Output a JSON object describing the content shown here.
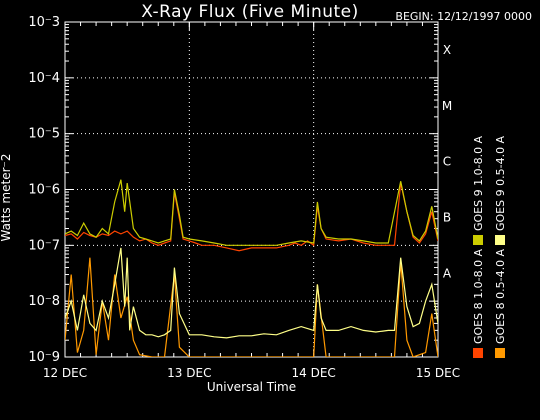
{
  "header": {
    "title": "X-Ray Flux (Five Minute)",
    "begin": "BEGIN: 12/12/1997 0000"
  },
  "chart_data": {
    "type": "line",
    "title": "X-Ray Flux (Five Minute)",
    "xlabel": "Universal Time",
    "ylabel": "Watts meter⁻2",
    "y_scale": "log",
    "ylim": [
      1e-09,
      0.001
    ],
    "xlim": [
      0,
      3
    ],
    "x_ticks": [
      {
        "pos": 0,
        "label": "12 DEC"
      },
      {
        "pos": 1,
        "label": "13 DEC"
      },
      {
        "pos": 2,
        "label": "14 DEC"
      },
      {
        "pos": 3,
        "label": "15 DEC"
      }
    ],
    "y_ticks": [
      {
        "exp": -9,
        "label": "10⁻9"
      },
      {
        "exp": -8,
        "label": "10⁻8"
      },
      {
        "exp": -7,
        "label": "10⁻7"
      },
      {
        "exp": -6,
        "label": "10⁻6"
      },
      {
        "exp": -5,
        "label": "10⁻5"
      },
      {
        "exp": -4,
        "label": "10⁻4"
      },
      {
        "exp": -3,
        "label": "10⁻3"
      }
    ],
    "flare_classes": [
      {
        "label": "A",
        "exp": -8
      },
      {
        "label": "B",
        "exp": -7
      },
      {
        "label": "C",
        "exp": -6
      },
      {
        "label": "M",
        "exp": -5
      },
      {
        "label": "X",
        "exp": -4
      }
    ],
    "grid": true,
    "legend_position": "right-vertical",
    "series": [
      {
        "name": "GOES 8 1.0-8.0 A",
        "color": "#ff4400",
        "x": [
          0,
          0.05,
          0.1,
          0.15,
          0.2,
          0.25,
          0.3,
          0.35,
          0.4,
          0.45,
          0.5,
          0.55,
          0.6,
          0.65,
          0.7,
          0.75,
          0.8,
          0.85,
          0.88,
          0.92,
          0.95,
          1.0,
          1.05,
          1.1,
          1.2,
          1.3,
          1.4,
          1.5,
          1.6,
          1.7,
          1.8,
          1.85,
          1.9,
          1.95,
          2.0,
          2.03,
          2.06,
          2.1,
          2.2,
          2.3,
          2.4,
          2.5,
          2.6,
          2.65,
          2.7,
          2.75,
          2.8,
          2.85,
          2.9,
          2.95,
          3.0
        ],
        "y": [
          1.5e-07,
          1.6e-07,
          1.3e-07,
          1.7e-07,
          1.5e-07,
          1.4e-07,
          1.6e-07,
          1.5e-07,
          1.8e-07,
          1.6e-07,
          1.8e-07,
          1.4e-07,
          1.2e-07,
          1.3e-07,
          1.1e-07,
          1e-07,
          1.1e-07,
          1.2e-07,
          9e-07,
          3e-07,
          1.3e-07,
          1.2e-07,
          1.1e-07,
          1e-07,
          1e-07,
          9e-08,
          8e-08,
          9e-08,
          9e-08,
          9e-08,
          1e-07,
          1.1e-07,
          1e-07,
          1.2e-07,
          1e-07,
          5e-07,
          2e-07,
          1.3e-07,
          1.2e-07,
          1.3e-07,
          1.1e-07,
          1e-07,
          1e-07,
          1e-07,
          1.3e-06,
          4e-07,
          1.4e-07,
          1.1e-07,
          1.6e-07,
          4e-07,
          1.2e-07
        ]
      },
      {
        "name": "GOES 8 0.5-4.0 A",
        "color": "#ff9900",
        "x": [
          0,
          0.05,
          0.1,
          0.15,
          0.2,
          0.25,
          0.3,
          0.35,
          0.4,
          0.45,
          0.5,
          0.55,
          0.6,
          0.7,
          0.8,
          0.88,
          0.92,
          1.0,
          1.2,
          1.4,
          1.6,
          1.8,
          2.0,
          2.03,
          2.1,
          2.3,
          2.5,
          2.65,
          2.7,
          2.75,
          2.8,
          2.9,
          2.95,
          3.0
        ],
        "y": [
          2e-09,
          3e-08,
          1.2e-09,
          3e-09,
          6e-08,
          1.1e-09,
          1e-08,
          2e-09,
          3e-08,
          5e-09,
          1.2e-08,
          2e-09,
          1.1e-09,
          1e-09,
          1e-09,
          3e-08,
          1.5e-09,
          1e-09,
          1e-09,
          1e-09,
          1e-09,
          1e-09,
          1e-09,
          2e-08,
          1e-09,
          1e-09,
          1e-09,
          1e-09,
          5e-08,
          2e-09,
          1e-09,
          1.2e-09,
          6e-09,
          1e-09
        ]
      },
      {
        "name": "GOES 9 1.0-8.0 A",
        "color": "#cccc00",
        "x": [
          0,
          0.05,
          0.1,
          0.15,
          0.2,
          0.25,
          0.3,
          0.35,
          0.4,
          0.45,
          0.48,
          0.5,
          0.55,
          0.6,
          0.65,
          0.7,
          0.75,
          0.8,
          0.85,
          0.88,
          0.92,
          0.95,
          1.0,
          1.1,
          1.2,
          1.3,
          1.4,
          1.5,
          1.6,
          1.7,
          1.8,
          1.9,
          2.0,
          2.03,
          2.06,
          2.1,
          2.2,
          2.3,
          2.4,
          2.5,
          2.6,
          2.7,
          2.75,
          2.8,
          2.85,
          2.9,
          2.95,
          3.0
        ],
        "y": [
          1.6e-07,
          1.8e-07,
          1.5e-07,
          2.5e-07,
          1.6e-07,
          1.4e-07,
          2e-07,
          1.6e-07,
          6e-07,
          1.5e-06,
          4e-07,
          1.3e-06,
          2e-07,
          1.4e-07,
          1.3e-07,
          1.2e-07,
          1.1e-07,
          1.2e-07,
          1.3e-07,
          1e-06,
          3.5e-07,
          1.4e-07,
          1.3e-07,
          1.2e-07,
          1.1e-07,
          1e-07,
          1e-07,
          1e-07,
          1e-07,
          1e-07,
          1.1e-07,
          1.2e-07,
          1.1e-07,
          6e-07,
          2e-07,
          1.4e-07,
          1.3e-07,
          1.3e-07,
          1.2e-07,
          1.1e-07,
          1.1e-07,
          1.4e-06,
          4e-07,
          1.5e-07,
          1.2e-07,
          1.8e-07,
          5e-07,
          1.3e-07
        ]
      },
      {
        "name": "GOES 9 0.5-4.0 A",
        "color": "#ffff88",
        "x": [
          0,
          0.05,
          0.1,
          0.15,
          0.2,
          0.25,
          0.3,
          0.35,
          0.4,
          0.45,
          0.48,
          0.5,
          0.52,
          0.55,
          0.6,
          0.65,
          0.7,
          0.75,
          0.8,
          0.85,
          0.88,
          0.92,
          1.0,
          1.1,
          1.2,
          1.3,
          1.4,
          1.5,
          1.6,
          1.7,
          1.8,
          1.9,
          2.0,
          2.03,
          2.06,
          2.1,
          2.2,
          2.3,
          2.4,
          2.5,
          2.6,
          2.65,
          2.7,
          2.75,
          2.8,
          2.85,
          2.9,
          2.95,
          3.0
        ],
        "y": [
          5e-09,
          1e-08,
          3e-09,
          1.3e-08,
          4e-09,
          3e-09,
          1e-08,
          5e-09,
          2e-08,
          9e-08,
          8e-09,
          6e-08,
          3e-09,
          8e-09,
          3e-09,
          2.5e-09,
          2.5e-09,
          2.3e-09,
          2.5e-09,
          3e-09,
          4e-08,
          6e-09,
          2.5e-09,
          2.5e-09,
          2.3e-09,
          2.2e-09,
          2.4e-09,
          2.4e-09,
          2.6e-09,
          2.5e-09,
          3e-09,
          3.5e-09,
          3e-09,
          2e-08,
          5e-09,
          3e-09,
          3e-09,
          3.5e-09,
          3e-09,
          2.8e-09,
          3e-09,
          3e-09,
          6e-08,
          8e-09,
          3.5e-09,
          4e-09,
          1e-08,
          2e-08,
          4e-09
        ]
      }
    ]
  }
}
